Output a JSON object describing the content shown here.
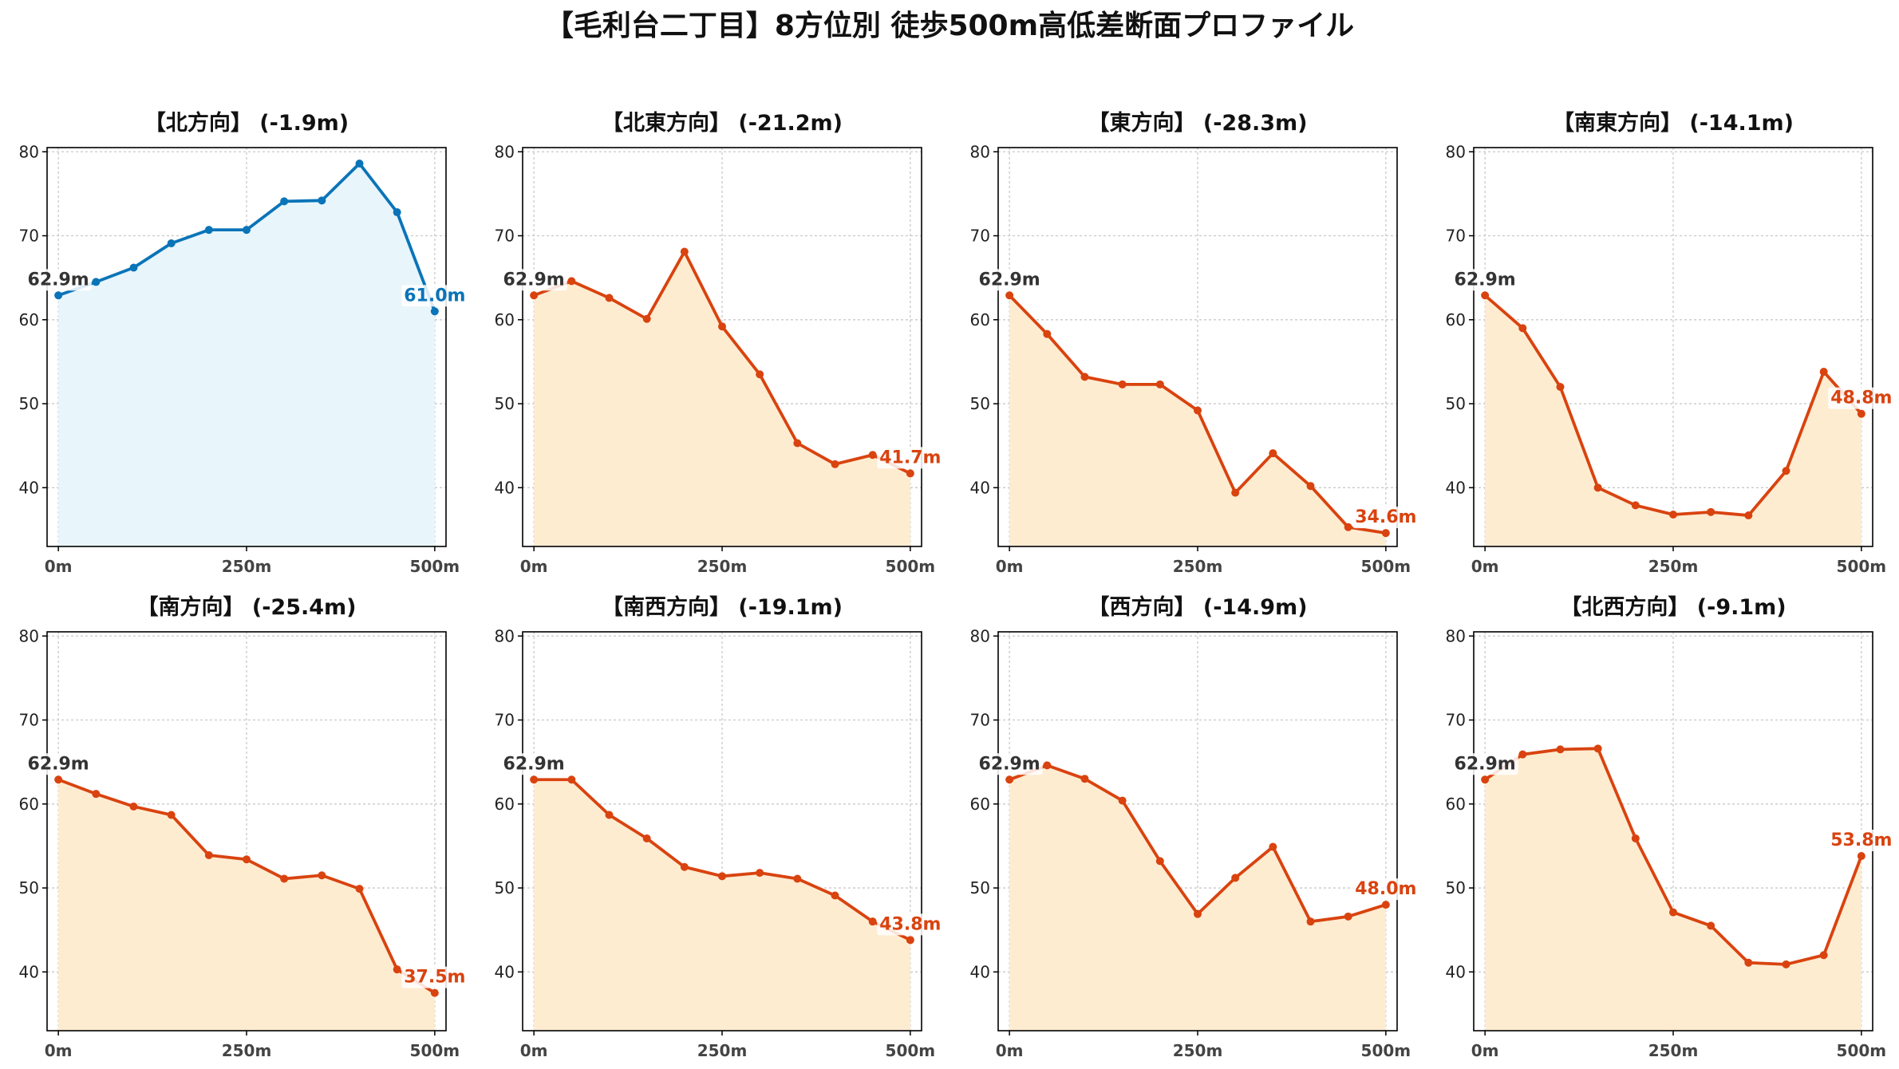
{
  "figure": {
    "title": "【毛利台二丁目】8方位別 徒歩500m高低差断面プロファイル"
  },
  "colors": {
    "up": "#0a74b8",
    "up_fill": "#e8f5fb",
    "down": "#d9430f",
    "down_fill": "#feecd1",
    "start_label": "#333333"
  },
  "chart_data": [
    {
      "type": "area",
      "title": "【北方向】 (-1.9m)",
      "x": [
        0,
        50,
        100,
        150,
        200,
        250,
        300,
        350,
        400,
        450,
        500
      ],
      "y": [
        62.9,
        64.5,
        66.2,
        69.1,
        70.7,
        70.7,
        74.1,
        74.2,
        78.6,
        72.8,
        61.0
      ],
      "start_label": "62.9m",
      "end_label": "61.0m",
      "trend": "up",
      "ylim": [
        33,
        80.5
      ],
      "xlim": [
        -15,
        515
      ],
      "yticks": [
        40,
        50,
        60,
        70,
        80
      ],
      "xticks": [
        {
          "v": 0,
          "label": "0m"
        },
        {
          "v": 250,
          "label": "250m"
        },
        {
          "v": 500,
          "label": "500m"
        }
      ],
      "grid": true
    },
    {
      "type": "area",
      "title": "【北東方向】 (-21.2m)",
      "x": [
        0,
        50,
        100,
        150,
        200,
        250,
        300,
        350,
        400,
        450,
        500
      ],
      "y": [
        62.9,
        64.6,
        62.6,
        60.1,
        68.1,
        59.2,
        53.5,
        45.3,
        42.8,
        43.9,
        41.7
      ],
      "start_label": "62.9m",
      "end_label": "41.7m",
      "trend": "down",
      "ylim": [
        33,
        80.5
      ],
      "xlim": [
        -15,
        515
      ],
      "yticks": [
        40,
        50,
        60,
        70,
        80
      ],
      "xticks": [
        {
          "v": 0,
          "label": "0m"
        },
        {
          "v": 250,
          "label": "250m"
        },
        {
          "v": 500,
          "label": "500m"
        }
      ],
      "grid": true
    },
    {
      "type": "area",
      "title": "【東方向】 (-28.3m)",
      "x": [
        0,
        50,
        100,
        150,
        200,
        250,
        300,
        350,
        400,
        450,
        500
      ],
      "y": [
        62.9,
        58.3,
        53.2,
        52.3,
        52.3,
        49.2,
        39.4,
        44.1,
        40.2,
        35.3,
        34.6
      ],
      "start_label": "62.9m",
      "end_label": "34.6m",
      "trend": "down",
      "ylim": [
        33,
        80.5
      ],
      "xlim": [
        -15,
        515
      ],
      "yticks": [
        40,
        50,
        60,
        70,
        80
      ],
      "xticks": [
        {
          "v": 0,
          "label": "0m"
        },
        {
          "v": 250,
          "label": "250m"
        },
        {
          "v": 500,
          "label": "500m"
        }
      ],
      "grid": true
    },
    {
      "type": "area",
      "title": "【南東方向】 (-14.1m)",
      "x": [
        0,
        50,
        100,
        150,
        200,
        250,
        300,
        350,
        400,
        450,
        500
      ],
      "y": [
        62.9,
        59.0,
        52.0,
        40.0,
        37.9,
        36.8,
        37.1,
        36.7,
        42.0,
        53.8,
        48.8
      ],
      "start_label": "62.9m",
      "end_label": "48.8m",
      "trend": "down",
      "ylim": [
        33,
        80.5
      ],
      "xlim": [
        -15,
        515
      ],
      "yticks": [
        40,
        50,
        60,
        70,
        80
      ],
      "xticks": [
        {
          "v": 0,
          "label": "0m"
        },
        {
          "v": 250,
          "label": "250m"
        },
        {
          "v": 500,
          "label": "500m"
        }
      ],
      "grid": true
    },
    {
      "type": "area",
      "title": "【南方向】 (-25.4m)",
      "x": [
        0,
        50,
        100,
        150,
        200,
        250,
        300,
        350,
        400,
        450,
        500
      ],
      "y": [
        62.9,
        61.2,
        59.7,
        58.7,
        53.9,
        53.4,
        51.1,
        51.5,
        49.9,
        40.3,
        37.5
      ],
      "start_label": "62.9m",
      "end_label": "37.5m",
      "trend": "down",
      "ylim": [
        33,
        80.5
      ],
      "xlim": [
        -15,
        515
      ],
      "yticks": [
        40,
        50,
        60,
        70,
        80
      ],
      "xticks": [
        {
          "v": 0,
          "label": "0m"
        },
        {
          "v": 250,
          "label": "250m"
        },
        {
          "v": 500,
          "label": "500m"
        }
      ],
      "grid": true
    },
    {
      "type": "area",
      "title": "【南西方向】 (-19.1m)",
      "x": [
        0,
        50,
        100,
        150,
        200,
        250,
        300,
        350,
        400,
        450,
        500
      ],
      "y": [
        62.9,
        62.9,
        58.7,
        55.9,
        52.5,
        51.4,
        51.8,
        51.1,
        49.1,
        46.0,
        43.8
      ],
      "start_label": "62.9m",
      "end_label": "43.8m",
      "trend": "down",
      "ylim": [
        33,
        80.5
      ],
      "xlim": [
        -15,
        515
      ],
      "yticks": [
        40,
        50,
        60,
        70,
        80
      ],
      "xticks": [
        {
          "v": 0,
          "label": "0m"
        },
        {
          "v": 250,
          "label": "250m"
        },
        {
          "v": 500,
          "label": "500m"
        }
      ],
      "grid": true
    },
    {
      "type": "area",
      "title": "【西方向】 (-14.9m)",
      "x": [
        0,
        50,
        100,
        150,
        200,
        250,
        300,
        350,
        400,
        450,
        500
      ],
      "y": [
        62.9,
        64.6,
        63.0,
        60.4,
        53.2,
        46.9,
        51.2,
        54.9,
        46.0,
        46.6,
        48.0
      ],
      "start_label": "62.9m",
      "end_label": "48.0m",
      "trend": "down",
      "ylim": [
        33,
        80.5
      ],
      "xlim": [
        -15,
        515
      ],
      "yticks": [
        40,
        50,
        60,
        70,
        80
      ],
      "xticks": [
        {
          "v": 0,
          "label": "0m"
        },
        {
          "v": 250,
          "label": "250m"
        },
        {
          "v": 500,
          "label": "500m"
        }
      ],
      "grid": true
    },
    {
      "type": "area",
      "title": "【北西方向】 (-9.1m)",
      "x": [
        0,
        50,
        100,
        150,
        200,
        250,
        300,
        350,
        400,
        450,
        500
      ],
      "y": [
        62.9,
        65.9,
        66.5,
        66.6,
        55.9,
        47.1,
        45.5,
        41.1,
        40.9,
        42.0,
        53.8
      ],
      "start_label": "62.9m",
      "end_label": "53.8m",
      "trend": "down",
      "ylim": [
        33,
        80.5
      ],
      "xlim": [
        -15,
        515
      ],
      "yticks": [
        40,
        50,
        60,
        70,
        80
      ],
      "xticks": [
        {
          "v": 0,
          "label": "0m"
        },
        {
          "v": 250,
          "label": "250m"
        },
        {
          "v": 500,
          "label": "500m"
        }
      ],
      "grid": true
    }
  ]
}
